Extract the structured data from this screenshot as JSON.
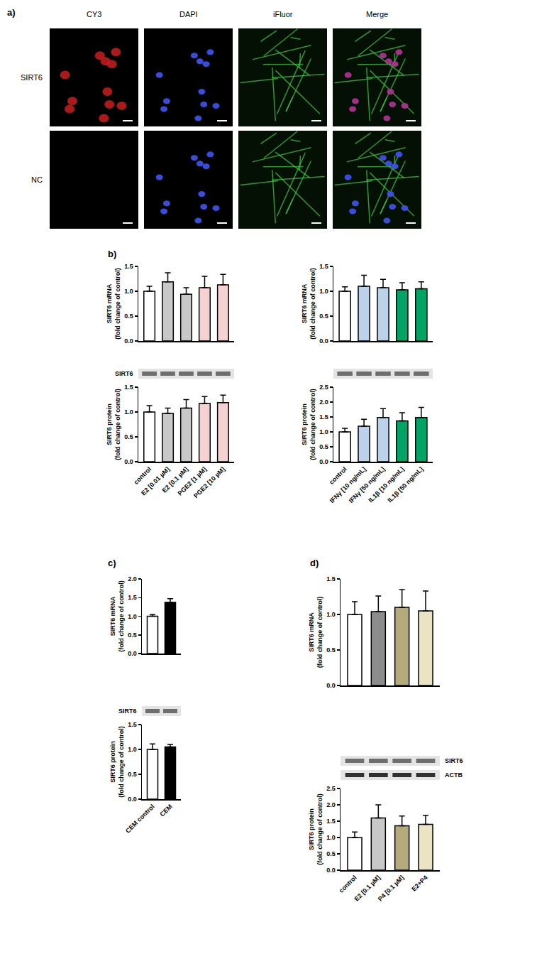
{
  "figure_a": {
    "panel": "a)",
    "columns": [
      "CY3",
      "DAPI",
      "iFluor",
      "Merge"
    ],
    "rows": [
      "SIRT6",
      "NC"
    ]
  },
  "chart_data": [
    {
      "type": "bar",
      "panel": "b)",
      "categories": [
        "control",
        "E2 [0.01 µM]",
        "E2 [0.1 µM]",
        "PGE2 [1 µM]",
        "PGE2 [10 µM]"
      ],
      "values": [
        1.0,
        1.19,
        0.94,
        1.07,
        1.13
      ],
      "errors": [
        0.1,
        0.18,
        0.13,
        0.23,
        0.21
      ],
      "colors": [
        "#ffffff",
        "#c8c8c8",
        "#c8c8c8",
        "#f4d2d2",
        "#f4d2d2"
      ],
      "y_label": "SIRT6 mRNA (fold change of control)",
      "ylim": [
        0,
        1.5
      ],
      "yticks": [
        {
          "value": 0,
          "label": "0.0"
        },
        {
          "value": 0.5,
          "label": "0.5"
        },
        {
          "value": 1,
          "label": "1.0"
        },
        {
          "value": 1.5,
          "label": "1.5"
        }
      ],
      "tick_labels": "y"
    },
    {
      "type": "bar",
      "categories": [
        "control",
        "IFNγ [10 ng/mL]",
        "IFNγ [50 ng/mL]",
        "IL1β [10 ng/mL]",
        "IL1β [50 ng/mL]"
      ],
      "values": [
        1.0,
        1.1,
        1.07,
        1.03,
        1.05
      ],
      "errors": [
        0.09,
        0.22,
        0.17,
        0.14,
        0.14
      ],
      "colors": [
        "#ffffff",
        "#bcd2ea",
        "#bcd2ea",
        "#00a566",
        "#00a566"
      ],
      "y_label": "SIRT6 mRNA (fold change of control)",
      "ylim": [
        0,
        1.5
      ],
      "yticks": [
        {
          "value": 0,
          "label": "0.0"
        },
        {
          "value": 0.5,
          "label": "0.5"
        },
        {
          "value": 1,
          "label": "1.0"
        },
        {
          "value": 1.5,
          "label": "1.5"
        }
      ],
      "tick_labels": "y"
    },
    {
      "type": "bar",
      "categories": [
        "control",
        "E2 [0.01 µM]",
        "E2 [0.1 µM]",
        "PGE2 [1 µM]",
        "PGE2 [10 µM]"
      ],
      "values": [
        1.0,
        0.97,
        1.08,
        1.17,
        1.19
      ],
      "errors": [
        0.13,
        0.11,
        0.17,
        0.14,
        0.15
      ],
      "colors": [
        "#ffffff",
        "#c8c8c8",
        "#c8c8c8",
        "#f4d2d2",
        "#f4d2d2"
      ],
      "y_label": "SIRT6 protein (fold change of control)",
      "ylim": [
        0,
        1.5
      ],
      "yticks": [
        {
          "value": 0,
          "label": "0.0"
        },
        {
          "value": 0.5,
          "label": "0.5"
        },
        {
          "value": 1,
          "label": "1.0"
        },
        {
          "value": 1.5,
          "label": "1.5"
        }
      ],
      "blot_labels": [
        "SIRT6"
      ]
    },
    {
      "type": "bar",
      "categories": [
        "control",
        "IFNγ [10 ng/mL]",
        "IFNγ [50 ng/mL]",
        "IL1β [10 ng/mL]",
        "IL1β [50 ng/mL]"
      ],
      "values": [
        1.0,
        1.19,
        1.48,
        1.37,
        1.48
      ],
      "errors": [
        0.12,
        0.23,
        0.3,
        0.27,
        0.34
      ],
      "colors": [
        "#ffffff",
        "#bcd2ea",
        "#bcd2ea",
        "#00a566",
        "#00a566"
      ],
      "y_label": "SIRT6 protein (fold change of control)",
      "ylim": [
        0,
        2.5
      ],
      "yticks": [
        {
          "value": 0,
          "label": "0.0"
        },
        {
          "value": 0.5,
          "label": "0.5"
        },
        {
          "value": 1,
          "label": "1.0"
        },
        {
          "value": 1.5,
          "label": "1.5"
        },
        {
          "value": 2,
          "label": "2.0"
        },
        {
          "value": 2.5,
          "label": "2.5"
        }
      ],
      "blot_labels": []
    },
    {
      "type": "bar",
      "panel": "c)",
      "categories": [
        "CEM control",
        "CEM"
      ],
      "values": [
        1.0,
        1.37
      ],
      "errors": [
        0.05,
        0.1
      ],
      "colors": [
        "#ffffff",
        "#000000"
      ],
      "y_label": "SIRT6 mRNA (fold change of control)",
      "ylim": [
        0,
        2
      ],
      "yticks": [
        {
          "value": 0,
          "label": "0.0"
        },
        {
          "value": 0.5,
          "label": "0.5"
        },
        {
          "value": 1,
          "label": "1.0"
        },
        {
          "value": 1.5,
          "label": "1.5"
        },
        {
          "value": 2,
          "label": "2.0"
        }
      ],
      "tick_labels": "y"
    },
    {
      "type": "bar",
      "categories": [
        "CEM control",
        "CEM"
      ],
      "values": [
        1.0,
        1.05
      ],
      "errors": [
        0.11,
        0.05
      ],
      "colors": [
        "#ffffff",
        "#000000"
      ],
      "y_label": "SIRT6 protein (fold change of control)",
      "ylim": [
        0,
        1.5
      ],
      "yticks": [
        {
          "value": 0,
          "label": "0.0"
        },
        {
          "value": 0.5,
          "label": "0.5"
        },
        {
          "value": 1,
          "label": "1.0"
        },
        {
          "value": 1.5,
          "label": "1.5"
        }
      ],
      "blot_labels": [
        "SIRT6"
      ]
    },
    {
      "type": "bar",
      "panel": "d)",
      "categories": [
        "control",
        "E2 [0.1 µM]",
        "P4 [0.1 µM]",
        "E2+P4"
      ],
      "values": [
        1.0,
        1.04,
        1.1,
        1.05
      ],
      "errors": [
        0.18,
        0.22,
        0.25,
        0.28
      ],
      "colors": [
        "#ffffff",
        "#8c8c8c",
        "#b5aa7a",
        "#ebe3c4"
      ],
      "y_label": "SIRT6 mRNA (fold change of control)",
      "ylim": [
        0,
        1.5
      ],
      "yticks": [
        {
          "value": 0,
          "label": "0.0"
        },
        {
          "value": 0.5,
          "label": "0.5"
        },
        {
          "value": 1,
          "label": "1.0"
        },
        {
          "value": 1.5,
          "label": "1.5"
        }
      ],
      "tick_labels": "y"
    },
    {
      "type": "bar",
      "categories": [
        "control",
        "E2 [0.1 µM]",
        "P4 [0.1 µM]",
        "E2+P4"
      ],
      "values": [
        1.0,
        1.6,
        1.36,
        1.4
      ],
      "errors": [
        0.17,
        0.4,
        0.3,
        0.28
      ],
      "colors": [
        "#ffffff",
        "#c8c8c8",
        "#b5aa7a",
        "#ebe3c4"
      ],
      "y_label": "SIRT6 protein (fold change of control)",
      "ylim": [
        0,
        2.5
      ],
      "yticks": [
        {
          "value": 0,
          "label": "0.0"
        },
        {
          "value": 0.5,
          "label": "0.5"
        },
        {
          "value": 1,
          "label": "1.0"
        },
        {
          "value": 1.5,
          "label": "1.5"
        },
        {
          "value": 2,
          "label": "2.0"
        },
        {
          "value": 2.5,
          "label": "2.5"
        }
      ],
      "blot_labels": [
        "SIRT6",
        "ACTB"
      ]
    }
  ]
}
